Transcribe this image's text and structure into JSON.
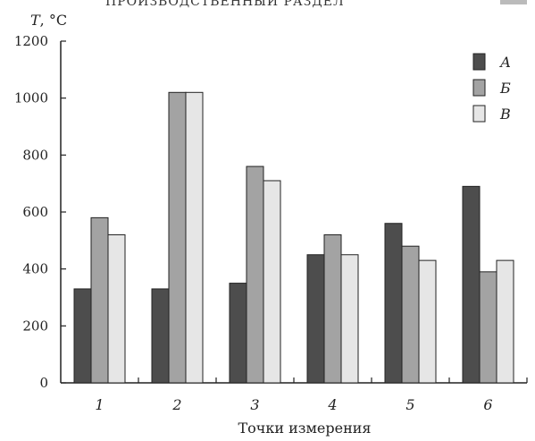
{
  "header": {
    "text": "ПРОИЗВОДСТВЕННЫЙ РАЗДЕЛ"
  },
  "chart_data": {
    "type": "bar",
    "ylabel": "T, °C",
    "xlabel": "Точки измерения",
    "ylim": [
      0,
      1200
    ],
    "yticks": [
      0,
      200,
      400,
      600,
      800,
      1000,
      1200
    ],
    "categories": [
      "1",
      "2",
      "3",
      "4",
      "5",
      "6"
    ],
    "series": [
      {
        "name": "А",
        "color": "#4d4d4d",
        "values": [
          330,
          330,
          350,
          450,
          560,
          690
        ]
      },
      {
        "name": "Б",
        "color": "#a3a3a3",
        "values": [
          580,
          1020,
          760,
          520,
          480,
          390
        ]
      },
      {
        "name": "В",
        "color": "#e6e6e6",
        "values": [
          520,
          1020,
          710,
          450,
          430,
          430
        ]
      }
    ],
    "legend_position": "top-right",
    "grid": false
  }
}
